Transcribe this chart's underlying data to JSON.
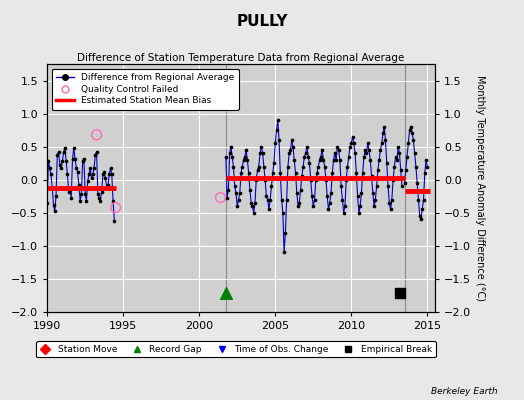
{
  "title": "PULLY",
  "subtitle": "Difference of Station Temperature Data from Regional Average",
  "ylabel_right": "Monthly Temperature Anomaly Difference (°C)",
  "xlim": [
    1990,
    2015.5
  ],
  "ylim": [
    -2,
    1.75
  ],
  "yticks": [
    -2,
    -1.5,
    -1,
    -0.5,
    0,
    0.5,
    1,
    1.5
  ],
  "xticks": [
    1990,
    1995,
    2000,
    2005,
    2010,
    2015
  ],
  "background_color": "#e8e8e8",
  "plot_bg_color": "#d0d0d0",
  "grid_color": "#ffffff",
  "line_color": "#0000cc",
  "dot_color": "#000000",
  "bias_color": "#ff0000",
  "qc_color": "#ff69b4",
  "vertical_line_color": "#888888",
  "segment1_bias": -0.13,
  "segment1_start": 1990.0,
  "segment1_end": 1994.5,
  "segment2_bias": 0.03,
  "segment2_start": 2001.75,
  "segment2_end": 2013.5,
  "segment3_bias": -0.17,
  "segment3_start": 2013.5,
  "segment3_end": 2015.2,
  "record_gap_x": 2001.75,
  "record_gap_y": -1.72,
  "empirical_break_x": 2013.2,
  "empirical_break_y": -1.72,
  "vertical_lines": [
    2001.75,
    2013.5
  ],
  "qc_failed_points": [
    [
      1993.25,
      0.68
    ],
    [
      2001.4,
      -0.27
    ],
    [
      1994.5,
      -0.42
    ]
  ],
  "data_segment1": {
    "x": [
      1990.0,
      1990.083,
      1990.167,
      1990.25,
      1990.333,
      1990.417,
      1990.5,
      1990.583,
      1990.667,
      1990.75,
      1990.833,
      1990.917,
      1991.0,
      1991.083,
      1991.167,
      1991.25,
      1991.333,
      1991.417,
      1991.5,
      1991.583,
      1991.667,
      1991.75,
      1991.833,
      1991.917,
      1992.0,
      1992.083,
      1992.167,
      1992.25,
      1992.333,
      1992.417,
      1992.5,
      1992.583,
      1992.667,
      1992.75,
      1992.833,
      1992.917,
      1993.0,
      1993.083,
      1993.167,
      1993.25,
      1993.333,
      1993.417,
      1993.5,
      1993.583,
      1993.667,
      1993.75,
      1993.833,
      1993.917,
      1994.0,
      1994.083,
      1994.167,
      1994.25,
      1994.333,
      1994.417
    ],
    "y": [
      -0.35,
      0.28,
      0.18,
      0.08,
      -0.12,
      -0.38,
      -0.48,
      -0.25,
      0.38,
      0.42,
      0.22,
      0.18,
      0.28,
      0.42,
      0.48,
      0.28,
      0.08,
      -0.18,
      -0.12,
      -0.28,
      0.32,
      0.48,
      0.32,
      0.18,
      0.12,
      -0.08,
      -0.32,
      -0.22,
      0.28,
      0.32,
      -0.22,
      -0.32,
      -0.02,
      0.08,
      0.18,
      0.02,
      0.08,
      0.18,
      0.38,
      0.42,
      -0.22,
      -0.28,
      -0.32,
      -0.18,
      0.08,
      0.12,
      0.02,
      -0.12,
      -0.08,
      0.08,
      0.18,
      0.08,
      -0.32,
      -0.62
    ]
  },
  "data_segment2": {
    "x": [
      2001.75,
      2001.833,
      2001.917,
      2002.0,
      2002.083,
      2002.167,
      2002.25,
      2002.333,
      2002.417,
      2002.5,
      2002.583,
      2002.667,
      2002.75,
      2002.833,
      2002.917,
      2003.0,
      2003.083,
      2003.167,
      2003.25,
      2003.333,
      2003.417,
      2003.5,
      2003.583,
      2003.667,
      2003.75,
      2003.833,
      2003.917,
      2004.0,
      2004.083,
      2004.167,
      2004.25,
      2004.333,
      2004.417,
      2004.5,
      2004.583,
      2004.667,
      2004.75,
      2004.833,
      2004.917,
      2005.0,
      2005.083,
      2005.167,
      2005.25,
      2005.333,
      2005.417,
      2005.5,
      2005.583,
      2005.667,
      2005.75,
      2005.833,
      2005.917,
      2006.0,
      2006.083,
      2006.167,
      2006.25,
      2006.333,
      2006.417,
      2006.5,
      2006.583,
      2006.667,
      2006.75,
      2006.833,
      2006.917,
      2007.0,
      2007.083,
      2007.167,
      2007.25,
      2007.333,
      2007.417,
      2007.5,
      2007.583,
      2007.667,
      2007.75,
      2007.833,
      2007.917,
      2008.0,
      2008.083,
      2008.167,
      2008.25,
      2008.333,
      2008.417,
      2008.5,
      2008.583,
      2008.667,
      2008.75,
      2008.833,
      2008.917,
      2009.0,
      2009.083,
      2009.167,
      2009.25,
      2009.333,
      2009.417,
      2009.5,
      2009.583,
      2009.667,
      2009.75,
      2009.833,
      2009.917,
      2010.0,
      2010.083,
      2010.167,
      2010.25,
      2010.333,
      2010.417,
      2010.5,
      2010.583,
      2010.667,
      2010.75,
      2010.833,
      2010.917,
      2011.0,
      2011.083,
      2011.167,
      2011.25,
      2011.333,
      2011.417,
      2011.5,
      2011.583,
      2011.667,
      2011.75,
      2011.833,
      2011.917,
      2012.0,
      2012.083,
      2012.167,
      2012.25,
      2012.333,
      2012.417,
      2012.5,
      2012.583,
      2012.667,
      2012.75,
      2012.833,
      2012.917,
      2013.0,
      2013.083,
      2013.167,
      2013.25,
      2013.333
    ],
    "y": [
      0.35,
      -0.27,
      -0.15,
      0.4,
      0.5,
      0.35,
      0.2,
      -0.1,
      -0.2,
      -0.4,
      -0.3,
      -0.2,
      0.1,
      0.2,
      0.3,
      0.35,
      0.45,
      0.3,
      0.1,
      -0.15,
      -0.35,
      -0.4,
      -0.5,
      -0.35,
      0.0,
      0.15,
      0.2,
      0.4,
      0.5,
      0.4,
      0.2,
      0.0,
      -0.25,
      -0.3,
      -0.45,
      -0.3,
      -0.1,
      0.1,
      0.25,
      0.55,
      0.75,
      0.9,
      0.6,
      0.1,
      -0.3,
      -0.5,
      -1.1,
      -0.8,
      -0.3,
      0.2,
      0.4,
      0.45,
      0.6,
      0.5,
      0.3,
      0.1,
      -0.2,
      -0.4,
      -0.35,
      -0.15,
      0.05,
      0.2,
      0.35,
      0.4,
      0.5,
      0.35,
      0.25,
      0.0,
      -0.25,
      -0.4,
      -0.3,
      0.0,
      0.1,
      0.2,
      0.3,
      0.35,
      0.45,
      0.3,
      0.2,
      0.0,
      -0.25,
      -0.45,
      -0.35,
      -0.2,
      0.1,
      0.3,
      0.4,
      0.3,
      0.5,
      0.45,
      0.3,
      -0.1,
      -0.3,
      -0.5,
      -0.4,
      0.0,
      0.2,
      0.35,
      0.5,
      0.55,
      0.65,
      0.55,
      0.4,
      0.1,
      -0.25,
      -0.5,
      -0.4,
      -0.2,
      0.1,
      0.35,
      0.45,
      0.4,
      0.55,
      0.45,
      0.3,
      0.05,
      -0.2,
      -0.4,
      -0.3,
      -0.1,
      0.15,
      0.3,
      0.45,
      0.55,
      0.7,
      0.8,
      0.6,
      0.25,
      -0.1,
      -0.35,
      -0.45,
      -0.3,
      0.0,
      0.2,
      0.35,
      0.3,
      0.5,
      0.4,
      0.15,
      -0.1
    ]
  },
  "data_segment3": {
    "x": [
      2013.5,
      2013.583,
      2013.667,
      2013.75,
      2013.833,
      2013.917,
      2014.0,
      2014.083,
      2014.167,
      2014.25,
      2014.333,
      2014.417,
      2014.5,
      2014.583,
      2014.667,
      2014.75,
      2014.833,
      2014.917,
      2015.0
    ],
    "y": [
      -0.05,
      0.15,
      0.35,
      0.55,
      0.75,
      0.8,
      0.7,
      0.6,
      0.4,
      0.2,
      -0.05,
      -0.3,
      -0.55,
      -0.6,
      -0.45,
      -0.3,
      0.1,
      0.3,
      0.2
    ]
  },
  "watermark": "Berkeley Earth"
}
